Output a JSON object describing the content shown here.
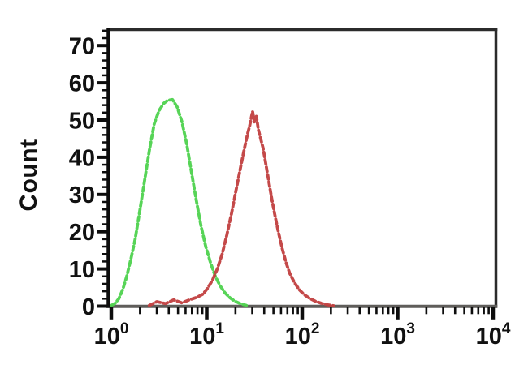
{
  "chart_data": {
    "type": "line",
    "title": "",
    "xlabel": "",
    "ylabel": "Count",
    "x_scale": "log10",
    "xlim": [
      1,
      10000
    ],
    "ylim": [
      0,
      70
    ],
    "grid": false,
    "legend": "none",
    "y_ticks": [
      0,
      10,
      20,
      30,
      40,
      50,
      60,
      70
    ],
    "y_minor_step": 2,
    "y_minor_max": 74,
    "x_decades": [
      0,
      1,
      2,
      3,
      4
    ],
    "x_tick_base": "10",
    "series": [
      {
        "name": "green-histogram",
        "color": "#4ed24e",
        "line_style": "dashed",
        "points": [
          [
            1.0,
            0.2
          ],
          [
            1.1,
            0.8
          ],
          [
            1.2,
            2
          ],
          [
            1.32,
            4.5
          ],
          [
            1.45,
            8
          ],
          [
            1.6,
            12.5
          ],
          [
            1.78,
            18
          ],
          [
            2.0,
            26
          ],
          [
            2.24,
            34
          ],
          [
            2.51,
            42
          ],
          [
            2.82,
            49
          ],
          [
            3.16,
            52.5
          ],
          [
            3.55,
            54.5
          ],
          [
            3.9,
            55.3
          ],
          [
            4.37,
            55.5
          ],
          [
            4.9,
            53.5
          ],
          [
            5.5,
            49.5
          ],
          [
            6.17,
            43.5
          ],
          [
            6.92,
            36
          ],
          [
            7.76,
            28.5
          ],
          [
            8.71,
            21.5
          ],
          [
            9.77,
            16
          ],
          [
            11.0,
            11.5
          ],
          [
            12.3,
            8
          ],
          [
            13.8,
            5.5
          ],
          [
            15.5,
            3.6
          ],
          [
            17.4,
            2.3
          ],
          [
            19.5,
            1.4
          ],
          [
            22.4,
            0.7
          ],
          [
            26.0,
            0.2
          ]
        ]
      },
      {
        "name": "red-histogram",
        "color": "#c13f3f",
        "line_style": "dashed",
        "points": [
          [
            2.5,
            0.2
          ],
          [
            3.0,
            1.2
          ],
          [
            3.7,
            0.7
          ],
          [
            4.5,
            1.7
          ],
          [
            5.5,
            0.9
          ],
          [
            6.6,
            1.7
          ],
          [
            7.9,
            2.4
          ],
          [
            9.1,
            3.2
          ],
          [
            10.2,
            4.8
          ],
          [
            11.5,
            7
          ],
          [
            12.9,
            10
          ],
          [
            14.5,
            14
          ],
          [
            16.2,
            19
          ],
          [
            18.2,
            25
          ],
          [
            20.4,
            31.5
          ],
          [
            22.9,
            38
          ],
          [
            25.1,
            43
          ],
          [
            26.9,
            46.5
          ],
          [
            28.2,
            48.5
          ],
          [
            30.2,
            52.3
          ],
          [
            31.6,
            49.5
          ],
          [
            33.1,
            51
          ],
          [
            34.7,
            47.5
          ],
          [
            36.3,
            45.5
          ],
          [
            38.9,
            42.5
          ],
          [
            41.7,
            38
          ],
          [
            44.7,
            33.5
          ],
          [
            47.9,
            29
          ],
          [
            51.3,
            25
          ],
          [
            56.2,
            20
          ],
          [
            61.7,
            15.5
          ],
          [
            67.6,
            11.8
          ],
          [
            74.1,
            8.8
          ],
          [
            83.2,
            6.3
          ],
          [
            93.3,
            4.4
          ],
          [
            105,
            3.1
          ],
          [
            120,
            2.1
          ],
          [
            138,
            1.3
          ],
          [
            158,
            0.8
          ],
          [
            182,
            0.4
          ],
          [
            214,
            0.1
          ]
        ]
      }
    ]
  },
  "colors": {
    "background": "#ffffff",
    "axis": "#0d0d0d",
    "frame": "#2b2b2b",
    "baseline": "#5f5d5a",
    "tick": "#0d0d0d",
    "tick_label": "#111111"
  }
}
